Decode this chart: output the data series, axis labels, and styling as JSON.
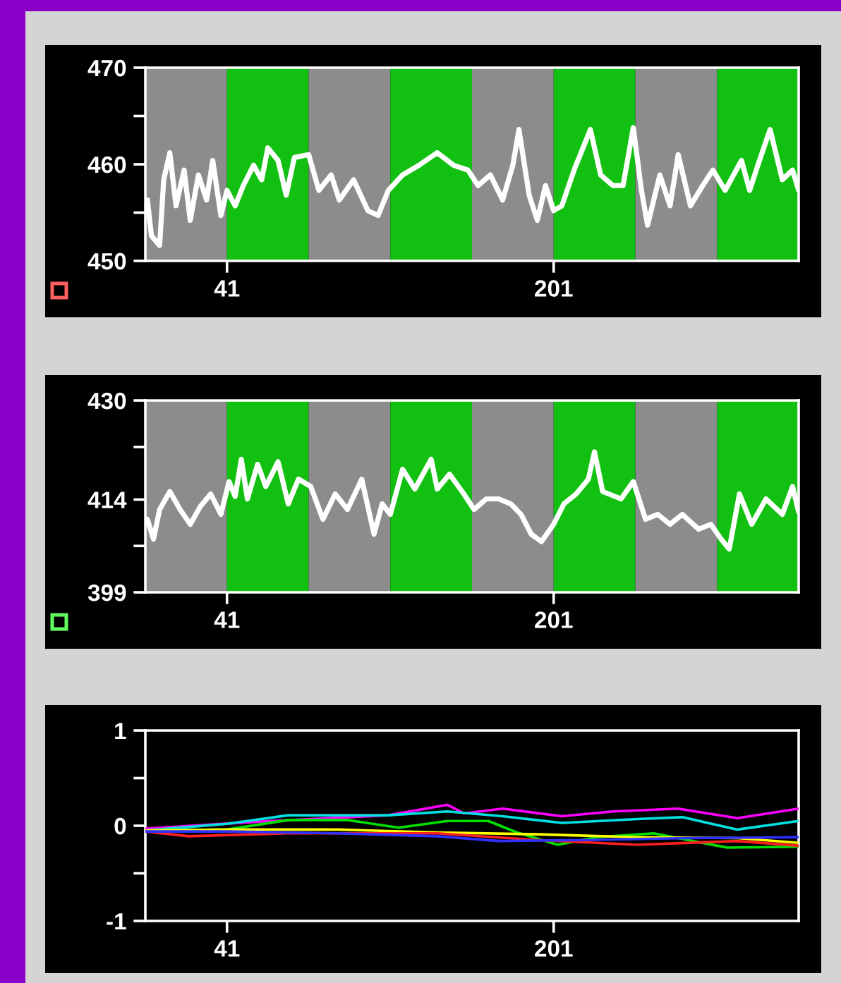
{
  "chart_data": [
    {
      "type": "line",
      "xlim": [
        1,
        321
      ],
      "xticks": [
        41,
        201
      ],
      "ylim": [
        450,
        470
      ],
      "yticks": [
        450,
        {
          "value": 455,
          "label": null
        },
        460,
        {
          "value": 465,
          "label": null
        },
        470
      ],
      "grid": false,
      "bands": [
        {
          "axis": "x",
          "from": 1,
          "to": 41,
          "color": "#8c8c8c"
        },
        {
          "axis": "x",
          "from": 41,
          "to": 81,
          "color": "#11c011"
        },
        {
          "axis": "x",
          "from": 81,
          "to": 121,
          "color": "#8c8c8c"
        },
        {
          "axis": "x",
          "from": 121,
          "to": 161,
          "color": "#11c011"
        },
        {
          "axis": "x",
          "from": 161,
          "to": 201,
          "color": "#8c8c8c"
        },
        {
          "axis": "x",
          "from": 201,
          "to": 241,
          "color": "#11c011"
        },
        {
          "axis": "x",
          "from": 241,
          "to": 281,
          "color": "#8c8c8c"
        },
        {
          "axis": "x",
          "from": 281,
          "to": 321,
          "color": "#11c011"
        }
      ],
      "series": [
        {
          "color": "#ffffff",
          "x": [
            2,
            4,
            8,
            10,
            13,
            16,
            20,
            23,
            27,
            31,
            34,
            38,
            41,
            45,
            49,
            54,
            58,
            61,
            66,
            70,
            74,
            81,
            86,
            92,
            96,
            103,
            110,
            115,
            120,
            127,
            135,
            144,
            152,
            159,
            164,
            170,
            176,
            181,
            184,
            189,
            193,
            197,
            201,
            205,
            211,
            219,
            224,
            230,
            235,
            240,
            244,
            247,
            253,
            258,
            262,
            268,
            274,
            279,
            285,
            293,
            297,
            301,
            307,
            313,
            318,
            321
          ],
          "values": [
            456.3,
            452.6,
            451.6,
            458.4,
            461.2,
            455.7,
            459.4,
            454.2,
            458.9,
            456.3,
            460.4,
            454.7,
            457.3,
            455.7,
            457.8,
            459.9,
            458.4,
            461.7,
            460.4,
            456.8,
            460.7,
            461,
            457.3,
            458.9,
            456.3,
            458.4,
            455.2,
            454.7,
            457.3,
            458.9,
            459.9,
            461.2,
            459.9,
            459.4,
            457.8,
            458.9,
            456.3,
            459.9,
            463.6,
            456.8,
            454.2,
            457.8,
            455.2,
            455.7,
            459.4,
            463.6,
            458.9,
            457.8,
            457.8,
            463.8,
            457.3,
            453.7,
            458.9,
            455.7,
            461,
            455.7,
            457.8,
            459.4,
            457.3,
            460.4,
            457.3,
            459.9,
            463.6,
            458.4,
            459.4,
            457.3
          ]
        }
      ]
    },
    {
      "type": "line",
      "xlim": [
        1,
        321
      ],
      "xticks": [
        41,
        201
      ],
      "ylim": [
        399,
        430
      ],
      "yticks": [
        399,
        {
          "value": 406.5,
          "label": null
        },
        414,
        {
          "value": 422.5,
          "label": null
        },
        430
      ],
      "grid": false,
      "bands": [
        {
          "axis": "x",
          "from": 1,
          "to": 41,
          "color": "#8c8c8c"
        },
        {
          "axis": "x",
          "from": 41,
          "to": 81,
          "color": "#11c011"
        },
        {
          "axis": "x",
          "from": 81,
          "to": 121,
          "color": "#8c8c8c"
        },
        {
          "axis": "x",
          "from": 121,
          "to": 161,
          "color": "#11c011"
        },
        {
          "axis": "x",
          "from": 161,
          "to": 201,
          "color": "#8c8c8c"
        },
        {
          "axis": "x",
          "from": 201,
          "to": 241,
          "color": "#11c011"
        },
        {
          "axis": "x",
          "from": 241,
          "to": 281,
          "color": "#8c8c8c"
        },
        {
          "axis": "x",
          "from": 281,
          "to": 321,
          "color": "#11c011"
        }
      ],
      "series": [
        {
          "color": "#ffffff",
          "x": [
            2,
            5,
            8,
            13,
            18,
            23,
            28,
            33,
            38,
            42,
            45,
            48,
            51,
            56,
            60,
            66,
            71,
            76,
            82,
            88,
            94,
            100,
            107,
            113,
            117,
            121,
            127,
            133,
            141,
            144,
            150,
            157,
            162,
            168,
            174,
            180,
            185,
            190,
            195,
            201,
            206,
            212,
            218,
            221,
            225,
            234,
            240,
            246,
            252,
            258,
            264,
            272,
            278,
            283,
            287,
            292,
            298,
            305,
            313,
            318,
            321
          ],
          "values": [
            410.8,
            407.6,
            412.4,
            415.3,
            412.4,
            410,
            412.9,
            414.9,
            411.6,
            416.9,
            414.5,
            420.5,
            414.1,
            419.7,
            416.1,
            420.1,
            413.3,
            417.3,
            416.1,
            410.8,
            414.9,
            412.4,
            417.3,
            408.4,
            413.3,
            411.6,
            418.9,
            415.7,
            420.5,
            415.7,
            418.1,
            414.9,
            412.4,
            414.1,
            414.1,
            413.3,
            411.6,
            408.4,
            407.2,
            410,
            413.3,
            414.9,
            417.3,
            421.7,
            415.3,
            414.1,
            416.9,
            410.8,
            411.6,
            410,
            411.6,
            409.2,
            410,
            407.6,
            406,
            414.9,
            410,
            414.1,
            411.6,
            416.1,
            412
          ]
        }
      ]
    },
    {
      "type": "line",
      "xlim": [
        1,
        321
      ],
      "xticks": [
        41,
        201
      ],
      "ylim": [
        -1,
        1
      ],
      "yticks": [
        -1,
        {
          "value": -0.5,
          "label": null
        },
        0,
        {
          "value": 0.5,
          "label": null
        },
        1
      ],
      "grid": false,
      "series": [
        {
          "color": "#ff00ff",
          "x": [
            1,
            54,
            120,
            149,
            157,
            176,
            205,
            230,
            262,
            291,
            321
          ],
          "values": [
            -0.03,
            0.04,
            0.11,
            0.22,
            0.13,
            0.18,
            0.1,
            0.15,
            0.18,
            0.08,
            0.18
          ]
        },
        {
          "color": "#00e0e0",
          "x": [
            1,
            41,
            71,
            120,
            149,
            176,
            205,
            242,
            264,
            291,
            321
          ],
          "values": [
            -0.05,
            0.02,
            0.11,
            0.11,
            0.15,
            0.1,
            0.03,
            0.07,
            0.09,
            -0.04,
            0.05
          ]
        },
        {
          "color": "#00e000",
          "x": [
            1,
            41,
            71,
            100,
            125,
            149,
            169,
            183,
            203,
            222,
            250,
            286,
            321
          ],
          "values": [
            -0.05,
            -0.04,
            0.06,
            0.06,
            -0.02,
            0.05,
            0.05,
            -0.07,
            -0.2,
            -0.12,
            -0.08,
            -0.23,
            -0.22
          ]
        },
        {
          "color": "#ffff00",
          "x": [
            1,
            41,
            95,
            144,
            193,
            242,
            291,
            321
          ],
          "values": [
            -0.05,
            -0.04,
            -0.04,
            -0.07,
            -0.09,
            -0.12,
            -0.13,
            -0.18
          ]
        },
        {
          "color": "#ff2020",
          "x": [
            1,
            22,
            71,
            144,
            193,
            242,
            291,
            321
          ],
          "values": [
            -0.06,
            -0.11,
            -0.08,
            -0.08,
            -0.15,
            -0.2,
            -0.16,
            -0.21
          ]
        },
        {
          "color": "#3030ff",
          "x": [
            1,
            41,
            95,
            144,
            174,
            218,
            266,
            321
          ],
          "values": [
            -0.06,
            -0.06,
            -0.08,
            -0.11,
            -0.16,
            -0.15,
            -0.13,
            -0.12
          ]
        }
      ]
    }
  ]
}
